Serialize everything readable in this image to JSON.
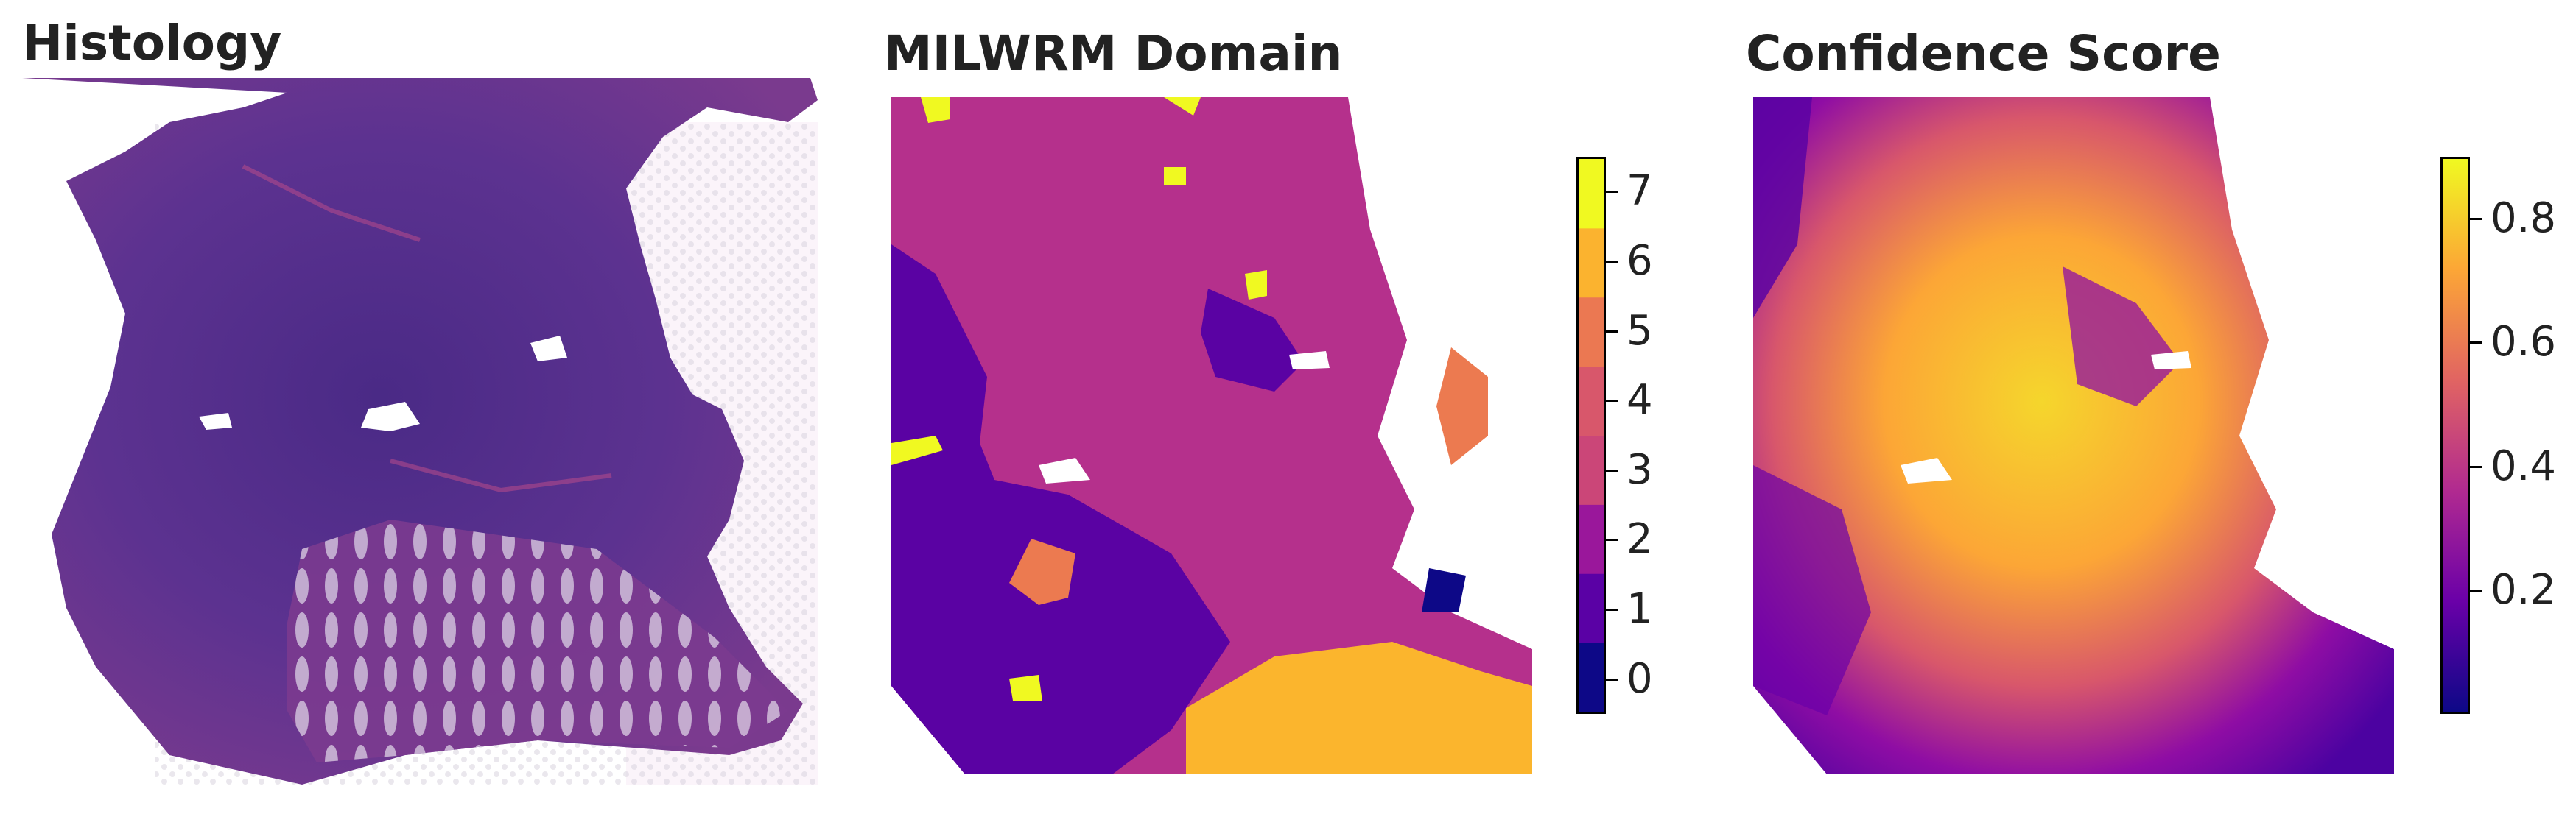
{
  "panels": {
    "histology": {
      "title": "Histology"
    },
    "domain": {
      "title": "MILWRM Domain",
      "colorbar": {
        "ticks": [
          "0",
          "1",
          "2",
          "3",
          "4",
          "5",
          "6",
          "7"
        ],
        "colors": [
          "#0d0887",
          "#5a01a5",
          "#9a179b",
          "#cb4678",
          "#d8576b",
          "#eb7852",
          "#fbb32f",
          "#f0f921"
        ]
      }
    },
    "confidence": {
      "title": "Confidence Score",
      "colorbar": {
        "ticks": [
          "0.2",
          "0.4",
          "0.6",
          "0.8"
        ],
        "tick_values": [
          0.2,
          0.4,
          0.6,
          0.8
        ],
        "range": [
          0.0,
          0.9
        ],
        "colors": [
          "#0d0887",
          "#6a00a8",
          "#b12a90",
          "#e16462",
          "#fca636",
          "#f0f921"
        ]
      }
    }
  }
}
